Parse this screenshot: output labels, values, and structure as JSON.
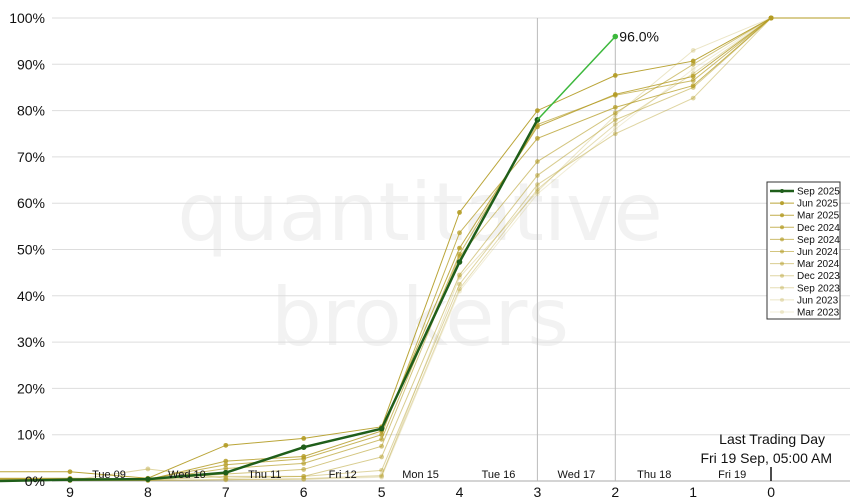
{
  "watermark": [
    "quantitative",
    "brokers"
  ],
  "annotation": {
    "line1": "Last Trading Day",
    "line2": "Fri 19 Sep, 05:00 AM"
  },
  "chart_data": {
    "type": "line",
    "x": [
      9,
      8,
      7,
      6,
      5,
      4,
      3,
      2,
      1,
      0
    ],
    "xlim": [
      9.9,
      -1.0
    ],
    "ylim": [
      0,
      100
    ],
    "y_ticks": [
      "0%",
      "10%",
      "20%",
      "30%",
      "40%",
      "50%",
      "60%",
      "70%",
      "80%",
      "90%",
      "100%"
    ],
    "x_ticks": [
      "9",
      "8",
      "7",
      "6",
      "5",
      "4",
      "3",
      "2",
      "1",
      "0"
    ],
    "day_labels": [
      "Tue 09",
      "Wed 10",
      "Thu 11",
      "Fri 12",
      "Mon 15",
      "Tue 16",
      "Wed 17",
      "Thu 18",
      "Fri 19"
    ],
    "grid": true,
    "legend_position": "right",
    "projection": {
      "from_x": 3,
      "to_x": 2,
      "value": 96.0,
      "label": "96.0%",
      "color": "#3cb83c"
    },
    "series": [
      {
        "name": "Sep 2025",
        "color": "#1f5e1a",
        "values": [
          0.3,
          0.4,
          1.8,
          7.3,
          11.3,
          47.3,
          78.0,
          null,
          null,
          null
        ]
      },
      {
        "name": "Jun 2025",
        "color": "#b39b22",
        "values": [
          2.0,
          0.6,
          7.7,
          9.2,
          11.7,
          58.0,
          80.0,
          87.6,
          90.7,
          100
        ]
      },
      {
        "name": "Mar 2025",
        "color": "#b39b22",
        "values": [
          0.3,
          0.3,
          4.3,
          5.3,
          10.8,
          50.3,
          76.5,
          83.5,
          87.4,
          100
        ]
      },
      {
        "name": "Dec 2024",
        "color": "#b39b22",
        "values": [
          0.6,
          0.4,
          3.5,
          4.8,
          10.0,
          53.6,
          74.0,
          80.7,
          85.4,
          100
        ]
      },
      {
        "name": "Sep 2024",
        "color": "#b39b22",
        "values": [
          0.5,
          0.2,
          2.7,
          3.8,
          9.0,
          49.0,
          77.0,
          83.3,
          86.5,
          100
        ]
      },
      {
        "name": "Jun 2024",
        "color": "#b39b22",
        "values": [
          0.4,
          0.3,
          1.5,
          2.5,
          7.5,
          48.5,
          69.0,
          79.5,
          90.0,
          100
        ]
      },
      {
        "name": "Mar 2024",
        "color": "#b39b22",
        "values": [
          0.2,
          0.2,
          1.0,
          1.0,
          5.2,
          44.5,
          66.0,
          78.0,
          85.0,
          100
        ]
      },
      {
        "name": "Dec 2023",
        "color": "#b39b22",
        "values": [
          0.1,
          2.6,
          0.6,
          1.0,
          2.3,
          42.5,
          64.0,
          75.0,
          82.7,
          100
        ]
      },
      {
        "name": "Sep 2023",
        "color": "#b39b22",
        "values": [
          0.1,
          0.1,
          0.3,
          0.5,
          1.2,
          41.5,
          63.0,
          77.0,
          88.0,
          100
        ]
      },
      {
        "name": "Jun 2023",
        "color": "#b39b22",
        "values": [
          0.1,
          0.1,
          0.3,
          0.4,
          1.0,
          44.0,
          62.5,
          79.0,
          93.0,
          100
        ]
      },
      {
        "name": "Mar 2023",
        "color": "#b39b22",
        "values": [
          0.1,
          0.1,
          0.2,
          0.3,
          0.8,
          41.0,
          62.0,
          76.0,
          89.0,
          100
        ]
      }
    ]
  }
}
